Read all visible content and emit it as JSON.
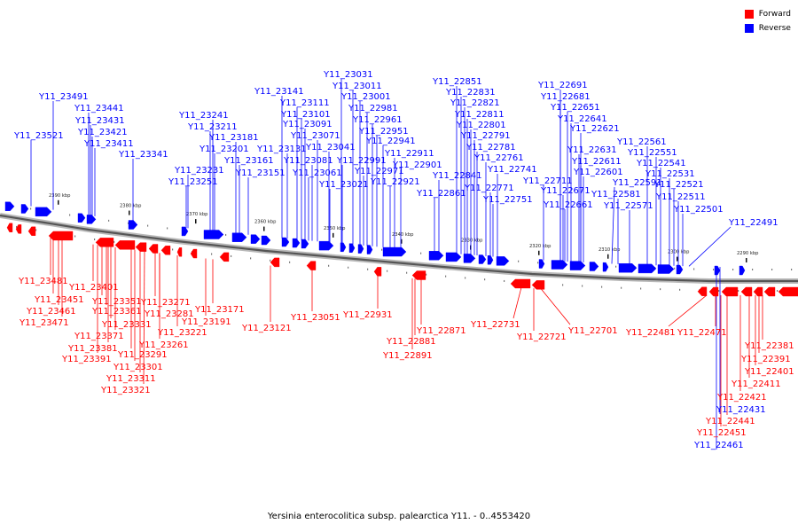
{
  "legend": {
    "forward_label": "Forward",
    "reverse_label": "Reverse",
    "forward_color": "#ff0000",
    "reverse_color": "#0000ff"
  },
  "caption": "Yersinia enterocolitica subsp. palearctica Y11. - 0..4553420",
  "scale_labels": [
    "2390 kbp",
    "2380 kbp",
    "2370 kbp",
    "2360 kbp",
    "2350 kbp",
    "2340 kbp",
    "2330 kbp",
    "2320 kbp",
    "2310 kbp",
    "2300 kbp",
    "2290 kbp"
  ],
  "reverse_genes": [
    "Y11_23521",
    "Y11_23491",
    "Y11_23441",
    "Y11_23431",
    "Y11_23421",
    "Y11_23411",
    "Y11_23341",
    "Y11_23251",
    "Y11_23241",
    "Y11_23231",
    "Y11_23211",
    "Y11_23201",
    "Y11_23181",
    "Y11_23161",
    "Y11_23151",
    "Y11_23141",
    "Y11_23131",
    "Y11_23111",
    "Y11_23101",
    "Y11_23091",
    "Y11_23081",
    "Y11_23071",
    "Y11_23061",
    "Y11_23041",
    "Y11_23031",
    "Y11_23021",
    "Y11_23011",
    "Y11_23001",
    "Y11_22991",
    "Y11_22981",
    "Y11_22971",
    "Y11_22961",
    "Y11_22951",
    "Y11_22941",
    "Y11_22921",
    "Y11_22911",
    "Y11_22901",
    "Y11_22861",
    "Y11_22851",
    "Y11_22841",
    "Y11_22831",
    "Y11_22821",
    "Y11_22811",
    "Y11_22801",
    "Y11_22791",
    "Y11_22781",
    "Y11_22771",
    "Y11_22761",
    "Y11_22751",
    "Y11_22741",
    "Y11_22711",
    "Y11_22691",
    "Y11_22681",
    "Y11_22671",
    "Y11_22661",
    "Y11_22651",
    "Y11_22641",
    "Y11_22631",
    "Y11_22621",
    "Y11_22611",
    "Y11_22601",
    "Y11_22591",
    "Y11_22581",
    "Y11_22571",
    "Y11_22561",
    "Y11_22551",
    "Y11_22541",
    "Y11_22531",
    "Y11_22521",
    "Y11_22511",
    "Y11_22501",
    "Y11_22491",
    "Y11_22431",
    "Y11_22461"
  ],
  "forward_genes": [
    "Y11_23481",
    "Y11_23451",
    "Y11_23461",
    "Y11_23471",
    "Y11_23401",
    "Y11_23351",
    "Y11_23361",
    "Y11_23371",
    "Y11_23331",
    "Y11_23381",
    "Y11_23391",
    "Y11_23291",
    "Y11_23301",
    "Y11_23311",
    "Y11_23321",
    "Y11_23271",
    "Y11_23281",
    "Y11_23261",
    "Y11_23221",
    "Y11_23171",
    "Y11_23191",
    "Y11_23121",
    "Y11_23051",
    "Y11_22931",
    "Y11_22881",
    "Y11_22891",
    "Y11_22871",
    "Y11_22731",
    "Y11_22721",
    "Y11_22701",
    "Y11_22481",
    "Y11_22471",
    "Y11_22381",
    "Y11_22391",
    "Y11_22401",
    "Y11_22411",
    "Y11_22421",
    "Y11_22441",
    "Y11_22451"
  ]
}
